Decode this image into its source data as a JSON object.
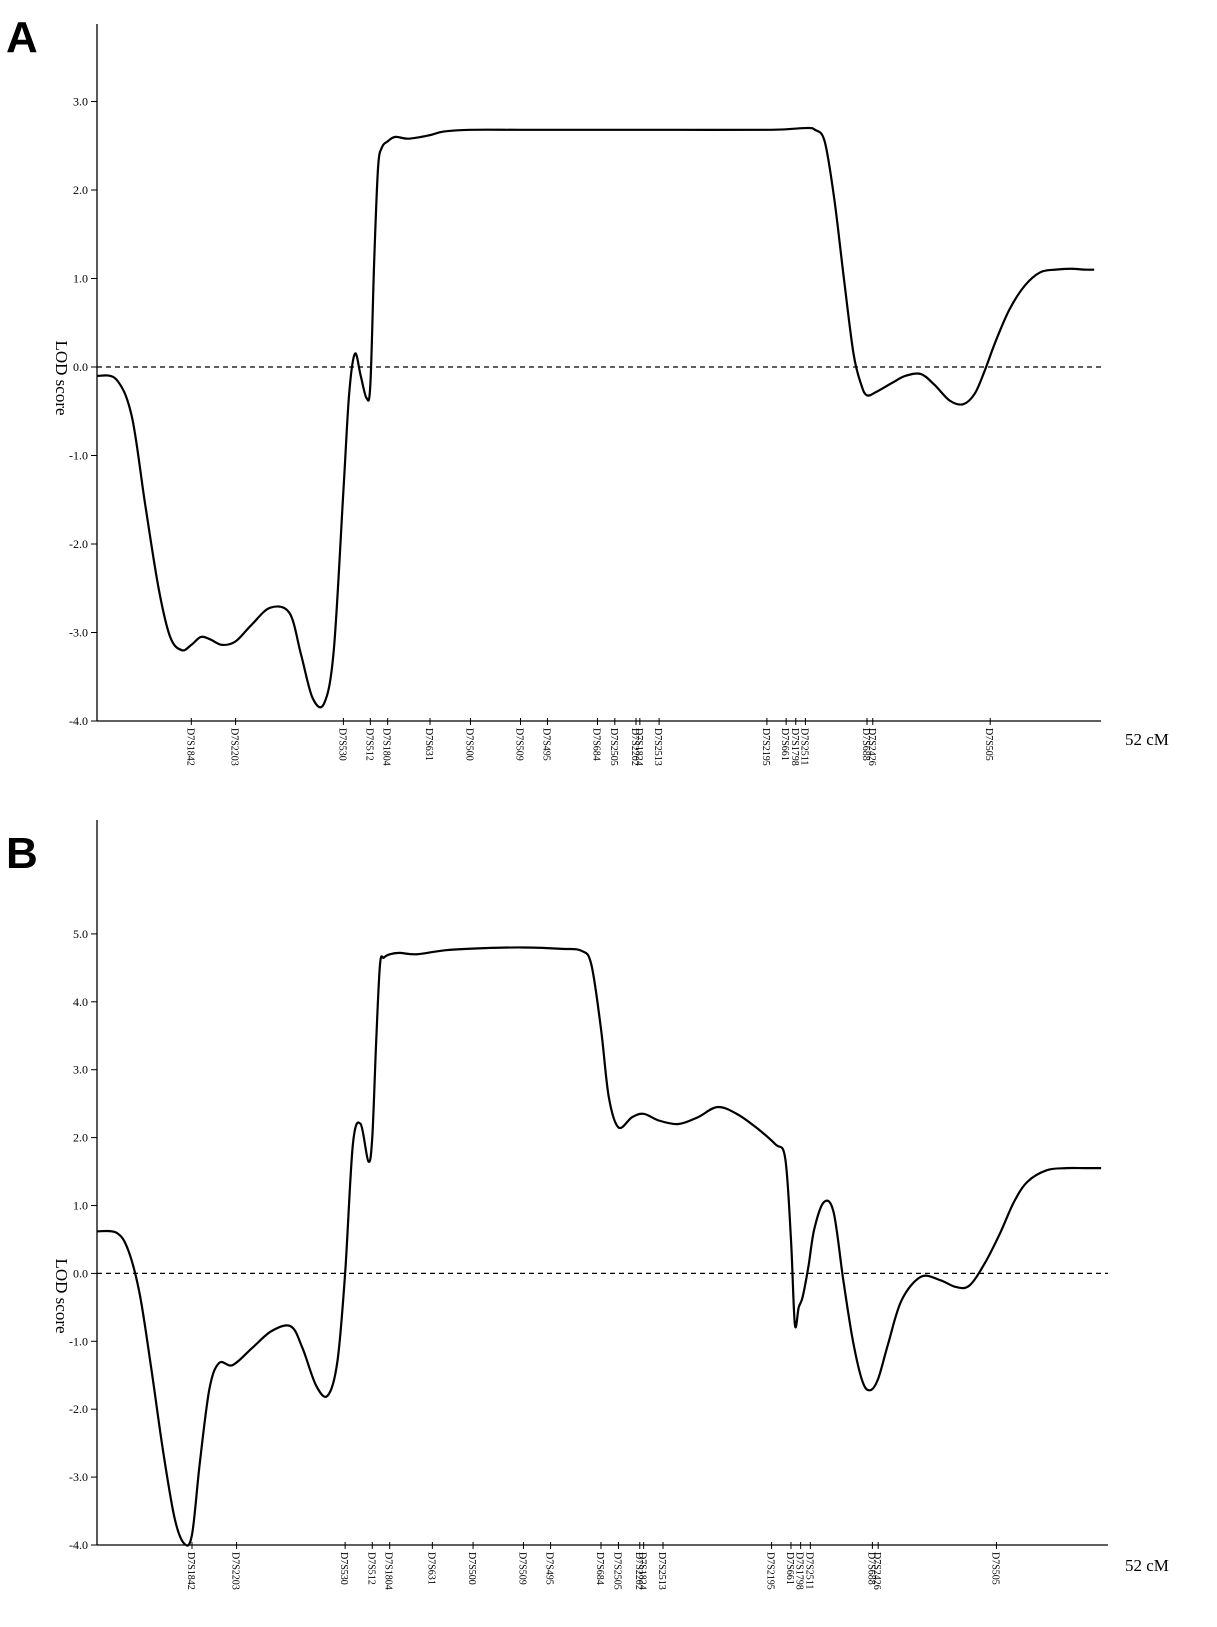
{
  "chart_data": [
    {
      "panel": "A",
      "type": "line",
      "xlabel": "",
      "ylabel": "LOD score",
      "x_end_label": "52 cM",
      "xlim": [
        0,
        52
      ],
      "ylim": [
        -4.0,
        4.0
      ],
      "y_ticks": [
        "3.0",
        "2.0",
        "1.0",
        "0.0",
        "-1.0",
        "-2.0",
        "-3.0",
        "-4.0"
      ],
      "y_tick_values": [
        3,
        2,
        1,
        0,
        -1,
        -2,
        -3,
        -4
      ],
      "reference_line": {
        "y": 0,
        "style": "dashed"
      },
      "markers": [
        {
          "name": "D7S1842",
          "x": 4.9
        },
        {
          "name": "D7S2203",
          "x": 7.2
        },
        {
          "name": "D7S530",
          "x": 12.8
        },
        {
          "name": "D7S512",
          "x": 14.2
        },
        {
          "name": "D7S1804",
          "x": 15.1
        },
        {
          "name": "D7S631",
          "x": 17.3
        },
        {
          "name": "D7S500",
          "x": 19.4
        },
        {
          "name": "D7S509",
          "x": 22.0
        },
        {
          "name": "D7S495",
          "x": 23.4
        },
        {
          "name": "D7S684",
          "x": 26.0
        },
        {
          "name": "D7S2505",
          "x": 26.9
        },
        {
          "name": "D7S2202",
          "x": 28.0
        },
        {
          "name": "D7S1824",
          "x": 28.2
        },
        {
          "name": "D7S2513",
          "x": 29.2
        },
        {
          "name": "D7S2195",
          "x": 34.8
        },
        {
          "name": "D7S661",
          "x": 35.8
        },
        {
          "name": "D7S1798",
          "x": 36.3
        },
        {
          "name": "D7S2511",
          "x": 36.8
        },
        {
          "name": "D7S688",
          "x": 40.0
        },
        {
          "name": "D7S2426",
          "x": 40.3
        },
        {
          "name": "D7S505",
          "x": 46.4
        }
      ],
      "series": [
        {
          "x": [
            0,
            1.0,
            1.8,
            2.5,
            3.2,
            3.8,
            4.4,
            4.9,
            5.4,
            5.9,
            6.5,
            7.2,
            8.0,
            9.0,
            10.0,
            10.6,
            11.2,
            11.8,
            12.3,
            12.8,
            13.1,
            13.4,
            13.7,
            14.0,
            14.2,
            14.4,
            14.6,
            14.8,
            15.1,
            15.5,
            16.2,
            17.3,
            18.0,
            19.4,
            22.0,
            25.0,
            30.0,
            35.0,
            36.8,
            37.3,
            37.8,
            38.3,
            38.8,
            39.3,
            39.7,
            40.0,
            40.5,
            41.3,
            42.0,
            42.8,
            43.5,
            44.3,
            45.0,
            45.6,
            46.1,
            46.7,
            47.4,
            48.2,
            49.0,
            49.8,
            50.6,
            51.3,
            51.8
          ],
          "y": [
            -0.1,
            -0.14,
            -0.55,
            -1.55,
            -2.5,
            -3.05,
            -3.2,
            -3.14,
            -3.05,
            -3.08,
            -3.14,
            -3.1,
            -2.92,
            -2.72,
            -2.78,
            -3.25,
            -3.74,
            -3.8,
            -3.2,
            -1.4,
            -0.3,
            0.15,
            -0.1,
            -0.35,
            -0.2,
            1.2,
            2.25,
            2.48,
            2.55,
            2.6,
            2.58,
            2.62,
            2.66,
            2.68,
            2.68,
            2.68,
            2.68,
            2.68,
            2.7,
            2.68,
            2.55,
            1.9,
            1.0,
            0.15,
            -0.2,
            -0.32,
            -0.28,
            -0.18,
            -0.1,
            -0.08,
            -0.2,
            -0.38,
            -0.42,
            -0.3,
            -0.05,
            0.3,
            0.65,
            0.92,
            1.07,
            1.1,
            1.11,
            1.1,
            1.1
          ]
        }
      ]
    },
    {
      "panel": "B",
      "type": "line",
      "xlabel": "",
      "ylabel": "LOD score",
      "x_end_label": "52 cM",
      "xlim": [
        0,
        52
      ],
      "ylim": [
        -4.0,
        6.0
      ],
      "y_ticks": [
        "5.0",
        "4.0",
        "3.0",
        "2.0",
        "1.0",
        "0.0",
        "-1.0",
        "-2.0",
        "-3.0",
        "-4.0"
      ],
      "y_tick_values": [
        5,
        4,
        3,
        2,
        1,
        0,
        -1,
        -2,
        -3,
        -4
      ],
      "reference_line": {
        "y": 0,
        "style": "dashed"
      },
      "markers": [
        {
          "name": "D7S1842",
          "x": 4.9
        },
        {
          "name": "D7S2203",
          "x": 7.2
        },
        {
          "name": "D7S530",
          "x": 12.8
        },
        {
          "name": "D7S512",
          "x": 14.2
        },
        {
          "name": "D7S1804",
          "x": 15.1
        },
        {
          "name": "D7S631",
          "x": 17.3
        },
        {
          "name": "D7S500",
          "x": 19.4
        },
        {
          "name": "D7S509",
          "x": 22.0
        },
        {
          "name": "D7S495",
          "x": 23.4
        },
        {
          "name": "D7S684",
          "x": 26.0
        },
        {
          "name": "D7S2505",
          "x": 26.9
        },
        {
          "name": "D7S2202",
          "x": 28.0
        },
        {
          "name": "D7S1824",
          "x": 28.2
        },
        {
          "name": "D7S2513",
          "x": 29.2
        },
        {
          "name": "D7S2195",
          "x": 34.8
        },
        {
          "name": "D7S661",
          "x": 35.8
        },
        {
          "name": "D7S1798",
          "x": 36.3
        },
        {
          "name": "D7S2511",
          "x": 36.8
        },
        {
          "name": "D7S688",
          "x": 40.0
        },
        {
          "name": "D7S2426",
          "x": 40.3
        },
        {
          "name": "D7S505",
          "x": 46.4
        }
      ],
      "series": [
        {
          "x": [
            0,
            1.0,
            1.6,
            2.2,
            2.8,
            3.4,
            4.0,
            4.5,
            4.9,
            5.3,
            5.8,
            6.3,
            7.0,
            8.0,
            9.0,
            10.0,
            10.6,
            11.3,
            11.9,
            12.4,
            12.8,
            13.2,
            13.6,
            14.0,
            14.2,
            14.4,
            14.6,
            14.8,
            15.1,
            15.6,
            16.5,
            18.0,
            20.0,
            22.0,
            24.0,
            25.0,
            25.5,
            26.0,
            26.4,
            26.9,
            27.6,
            28.2,
            29.0,
            30.0,
            31.0,
            32.0,
            33.0,
            34.0,
            35.0,
            35.5,
            35.8,
            36.0,
            36.2,
            36.4,
            36.7,
            37.0,
            37.5,
            38.0,
            38.5,
            39.0,
            39.5,
            39.9,
            40.3,
            40.8,
            41.5,
            42.5,
            43.5,
            44.3,
            45.0,
            45.8,
            46.6,
            47.3,
            48.0,
            49.0,
            50.0,
            51.0,
            51.8
          ],
          "y": [
            0.62,
            0.6,
            0.35,
            -0.3,
            -1.4,
            -2.6,
            -3.6,
            -3.98,
            -3.85,
            -2.8,
            -1.7,
            -1.32,
            -1.35,
            -1.1,
            -0.85,
            -0.78,
            -1.1,
            -1.65,
            -1.8,
            -1.3,
            0.0,
            1.9,
            2.2,
            1.65,
            2.0,
            3.4,
            4.55,
            4.65,
            4.7,
            4.72,
            4.7,
            4.76,
            4.79,
            4.8,
            4.78,
            4.75,
            4.55,
            3.6,
            2.6,
            2.15,
            2.3,
            2.35,
            2.25,
            2.2,
            2.3,
            2.45,
            2.35,
            2.15,
            1.9,
            1.7,
            0.5,
            -0.75,
            -0.5,
            -0.35,
            0.1,
            0.65,
            1.05,
            0.9,
            -0.1,
            -1.0,
            -1.6,
            -1.72,
            -1.55,
            -1.05,
            -0.4,
            -0.05,
            -0.1,
            -0.2,
            -0.18,
            0.15,
            0.6,
            1.05,
            1.35,
            1.52,
            1.55,
            1.55,
            1.55
          ]
        }
      ]
    }
  ]
}
